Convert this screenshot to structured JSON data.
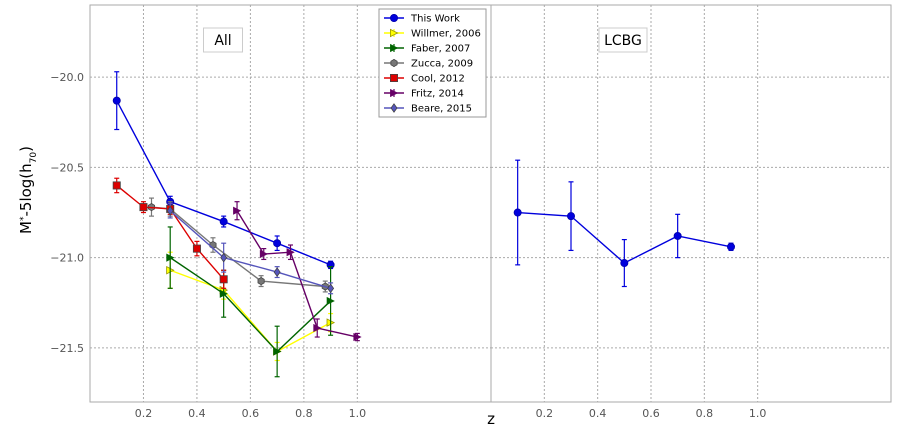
{
  "chart_data": {
    "type": "scatter",
    "ylabel_html": "M*-5log(h70)",
    "xlabel": "z",
    "ylim": [
      19.6,
      21.8
    ],
    "y_inverted": true,
    "y_ticks": [
      20.0,
      20.5,
      21.0,
      21.5
    ],
    "y_tick_labels": [
      "−20.0",
      "−20.5",
      "−21.0",
      "−21.5"
    ],
    "grid": true,
    "legend_position": "top-right of left panel",
    "panels": [
      {
        "label": "All",
        "xlim": [
          0.0,
          1.5
        ],
        "x_ticks": [
          0.2,
          0.4,
          0.6,
          0.8,
          1.0
        ],
        "x_tick_labels": [
          "0.2",
          "0.4",
          "0.6",
          "0.8",
          "1.0"
        ],
        "series": [
          {
            "name": "This Work",
            "color": "#0000dd",
            "marker": "circle",
            "x": [
              0.1,
              0.3,
              0.5,
              0.7,
              0.9
            ],
            "y": [
              20.13,
              20.69,
              20.8,
              20.92,
              21.04
            ],
            "err": [
              0.16,
              0.03,
              0.03,
              0.04,
              0.02
            ]
          },
          {
            "name": "Willmer, 2006",
            "color": "#ffff00",
            "marker": "triangle-right",
            "x": [
              0.3,
              0.5,
              0.7,
              0.9
            ],
            "y": [
              21.07,
              21.18,
              21.52,
              21.36
            ],
            "err": [
              0.1,
              0.05,
              0.05,
              0.05
            ]
          },
          {
            "name": "Faber, 2007",
            "color": "#006400",
            "marker": "tri",
            "x": [
              0.3,
              0.5,
              0.7,
              0.9
            ],
            "y": [
              21.0,
              21.2,
              21.52,
              21.24
            ],
            "err": [
              0.17,
              0.13,
              0.14,
              0.19
            ]
          },
          {
            "name": "Zucca, 2009",
            "color": "#777777",
            "marker": "hexagon",
            "x": [
              0.23,
              0.3,
              0.46,
              0.64,
              0.88
            ],
            "y": [
              20.72,
              20.73,
              20.93,
              21.13,
              21.16
            ],
            "err": [
              0.05,
              0.04,
              0.04,
              0.03,
              0.03
            ]
          },
          {
            "name": "Cool, 2012",
            "color": "#dd0000",
            "marker": "square",
            "x": [
              0.1,
              0.2,
              0.3,
              0.4,
              0.5
            ],
            "y": [
              20.6,
              20.72,
              20.73,
              20.95,
              21.12
            ],
            "err": [
              0.04,
              0.03,
              0.03,
              0.04,
              0.05
            ]
          },
          {
            "name": "Fritz, 2014",
            "color": "#660066",
            "marker": "tri",
            "x": [
              0.55,
              0.65,
              0.75,
              0.85,
              1.0
            ],
            "y": [
              20.74,
              20.98,
              20.97,
              21.39,
              21.44
            ],
            "err": [
              0.05,
              0.03,
              0.04,
              0.05,
              0.02
            ]
          },
          {
            "name": "Beare, 2015",
            "color": "#5555bb",
            "marker": "diamond",
            "x": [
              0.3,
              0.5,
              0.7,
              0.9
            ],
            "y": [
              20.74,
              21.0,
              21.08,
              21.17
            ],
            "err": [
              0.04,
              0.08,
              0.03,
              0.03
            ]
          }
        ]
      },
      {
        "label": "LCBG",
        "xlim": [
          0.0,
          1.5
        ],
        "x_ticks": [
          0.2,
          0.4,
          0.6,
          0.8,
          1.0
        ],
        "x_tick_labels": [
          "0.2",
          "0.4",
          "0.6",
          "0.8",
          "1.0"
        ],
        "series": [
          {
            "name": "This Work",
            "color": "#0000dd",
            "marker": "circle",
            "x": [
              0.1,
              0.3,
              0.5,
              0.7,
              0.9
            ],
            "y": [
              20.75,
              20.77,
              21.03,
              20.88,
              20.94
            ],
            "err": [
              0.29,
              0.19,
              0.13,
              0.12,
              0.02
            ]
          }
        ]
      }
    ]
  }
}
